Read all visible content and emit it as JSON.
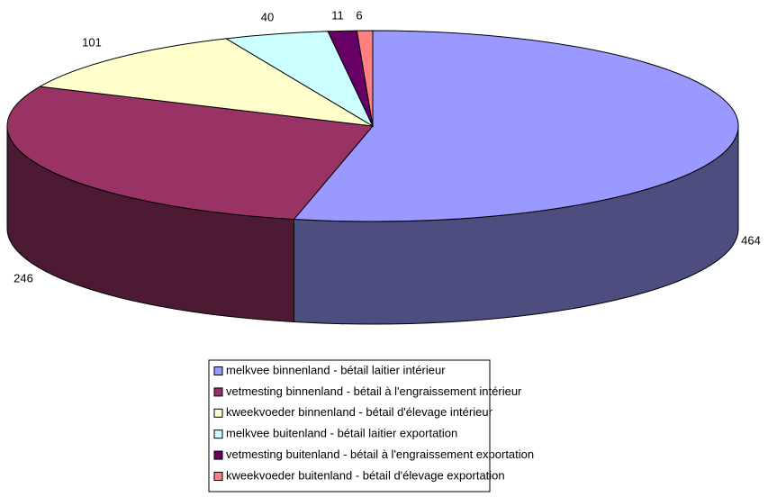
{
  "chart_data": {
    "type": "pie",
    "categories": [
      "melkvee binnenland - bétail laitier intérieur",
      "vetmesting binnenland - bétail à l'engraissement intérieur",
      "kweekvoeder binnenland - bétail d'élevage intérieur",
      "melkvee buitenland - bétail laitier exportation",
      "vetmesting buitenland - bétail à l'engraissement exportation",
      "kweekvoeder buitenland - bétail d'élevage exportation"
    ],
    "values": [
      464,
      246,
      101,
      40,
      11,
      6
    ],
    "colors": [
      "#9999FF",
      "#993366",
      "#FFFFCC",
      "#CCFFFF",
      "#660066",
      "#FF8080"
    ],
    "legend": "bottom"
  }
}
